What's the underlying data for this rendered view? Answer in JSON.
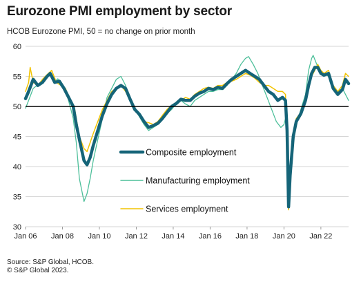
{
  "header": {
    "title": "Eurozone PMI employment by sector",
    "subtitle": "HCOB Eurozone PMI, 50 = no change on prior month"
  },
  "footer": {
    "source_line1": "Source: S&P Global, HCOB.",
    "source_line2": "© S&P Global 2023."
  },
  "chart_data": {
    "type": "line",
    "title": "Eurozone PMI employment by sector",
    "subtitle": "HCOB Eurozone PMI, 50 = no change on prior month",
    "xlabel": "",
    "ylabel": "",
    "x_range": [
      "2006-01",
      "2023-07"
    ],
    "ylim": [
      30,
      60
    ],
    "y_ticks": [
      30,
      35,
      40,
      45,
      50,
      55,
      60
    ],
    "x_ticks": [
      "Jan 06",
      "Jan 08",
      "Jan 10",
      "Jan 12",
      "Jan 14",
      "Jan 16",
      "Jan 18",
      "Jan 20",
      "Jan 22"
    ],
    "reference_line": 50,
    "grid": "horizontal",
    "legend_position": "center-right",
    "series": [
      {
        "name": "Manufacturing employment",
        "color": "#4dbf9a",
        "width": 1.3,
        "points": [
          [
            "2006-01",
            49.7
          ],
          [
            "2006-03",
            51.0
          ],
          [
            "2006-06",
            53.0
          ],
          [
            "2006-09",
            53.6
          ],
          [
            "2006-12",
            54.0
          ],
          [
            "2007-03",
            55.0
          ],
          [
            "2007-06",
            55.4
          ],
          [
            "2007-08",
            54.2
          ],
          [
            "2007-10",
            54.6
          ],
          [
            "2007-12",
            53.4
          ],
          [
            "2008-03",
            52.8
          ],
          [
            "2008-06",
            50.0
          ],
          [
            "2008-08",
            48.0
          ],
          [
            "2008-10",
            44.0
          ],
          [
            "2008-12",
            38.0
          ],
          [
            "2009-03",
            34.2
          ],
          [
            "2009-05",
            35.5
          ],
          [
            "2009-07",
            38.0
          ],
          [
            "2009-09",
            41.0
          ],
          [
            "2009-12",
            44.5
          ],
          [
            "2010-03",
            48.0
          ],
          [
            "2010-06",
            51.5
          ],
          [
            "2010-09",
            53.0
          ],
          [
            "2010-12",
            54.5
          ],
          [
            "2011-03",
            55.0
          ],
          [
            "2011-06",
            53.5
          ],
          [
            "2011-09",
            51.2
          ],
          [
            "2011-12",
            49.5
          ],
          [
            "2012-03",
            48.3
          ],
          [
            "2012-06",
            47.0
          ],
          [
            "2012-09",
            46.0
          ],
          [
            "2012-12",
            46.5
          ],
          [
            "2013-03",
            47.0
          ],
          [
            "2013-06",
            48.0
          ],
          [
            "2013-09",
            48.8
          ],
          [
            "2013-12",
            49.5
          ],
          [
            "2014-03",
            50.5
          ],
          [
            "2014-06",
            51.0
          ],
          [
            "2014-09",
            50.4
          ],
          [
            "2014-12",
            50.0
          ],
          [
            "2015-03",
            51.0
          ],
          [
            "2015-06",
            51.5
          ],
          [
            "2015-09",
            52.0
          ],
          [
            "2015-12",
            52.5
          ],
          [
            "2016-03",
            52.5
          ],
          [
            "2016-06",
            52.8
          ],
          [
            "2016-09",
            52.8
          ],
          [
            "2016-12",
            53.5
          ],
          [
            "2017-03",
            54.5
          ],
          [
            "2017-06",
            55.5
          ],
          [
            "2017-09",
            57.0
          ],
          [
            "2017-12",
            58.0
          ],
          [
            "2018-02",
            58.3
          ],
          [
            "2018-05",
            57.0
          ],
          [
            "2018-08",
            55.5
          ],
          [
            "2018-11",
            53.5
          ],
          [
            "2019-02",
            51.5
          ],
          [
            "2019-05",
            49.5
          ],
          [
            "2019-08",
            47.5
          ],
          [
            "2019-11",
            46.5
          ],
          [
            "2020-01",
            47.0
          ],
          [
            "2020-02",
            48.0
          ],
          [
            "2020-03",
            44.0
          ],
          [
            "2020-04",
            33.5
          ],
          [
            "2020-05",
            37.0
          ],
          [
            "2020-07",
            44.0
          ],
          [
            "2020-09",
            47.0
          ],
          [
            "2020-12",
            49.5
          ],
          [
            "2021-03",
            52.0
          ],
          [
            "2021-05",
            56.0
          ],
          [
            "2021-07",
            58.0
          ],
          [
            "2021-08",
            58.5
          ],
          [
            "2021-10",
            57.2
          ],
          [
            "2021-12",
            56.0
          ],
          [
            "2022-03",
            55.5
          ],
          [
            "2022-06",
            55.0
          ],
          [
            "2022-09",
            53.5
          ],
          [
            "2022-12",
            52.5
          ],
          [
            "2023-03",
            53.0
          ],
          [
            "2023-05",
            52.0
          ],
          [
            "2023-07",
            51.0
          ]
        ]
      },
      {
        "name": "Services employment",
        "color": "#f2c300",
        "width": 1.5,
        "points": [
          [
            "2006-01",
            52.5
          ],
          [
            "2006-03",
            54.0
          ],
          [
            "2006-04",
            56.5
          ],
          [
            "2006-06",
            54.0
          ],
          [
            "2006-09",
            53.5
          ],
          [
            "2006-12",
            54.5
          ],
          [
            "2007-03",
            55.3
          ],
          [
            "2007-06",
            56.0
          ],
          [
            "2007-09",
            54.0
          ],
          [
            "2007-12",
            53.5
          ],
          [
            "2008-03",
            53.0
          ],
          [
            "2008-06",
            51.0
          ],
          [
            "2008-09",
            49.5
          ],
          [
            "2008-12",
            45.0
          ],
          [
            "2009-03",
            43.0
          ],
          [
            "2009-05",
            42.5
          ],
          [
            "2009-07",
            44.0
          ],
          [
            "2009-09",
            45.5
          ],
          [
            "2009-12",
            47.5
          ],
          [
            "2010-03",
            49.5
          ],
          [
            "2010-06",
            51.0
          ],
          [
            "2010-09",
            52.5
          ],
          [
            "2010-12",
            53.0
          ],
          [
            "2011-03",
            53.5
          ],
          [
            "2011-06",
            52.5
          ],
          [
            "2011-09",
            51.0
          ],
          [
            "2011-12",
            49.5
          ],
          [
            "2012-03",
            48.5
          ],
          [
            "2012-06",
            47.5
          ],
          [
            "2012-09",
            47.3
          ],
          [
            "2012-12",
            47.0
          ],
          [
            "2013-03",
            47.5
          ],
          [
            "2013-06",
            48.5
          ],
          [
            "2013-09",
            49.5
          ],
          [
            "2013-12",
            50.2
          ],
          [
            "2014-03",
            50.5
          ],
          [
            "2014-06",
            51.0
          ],
          [
            "2014-09",
            51.5
          ],
          [
            "2014-12",
            51.2
          ],
          [
            "2015-03",
            52.0
          ],
          [
            "2015-06",
            52.5
          ],
          [
            "2015-09",
            53.0
          ],
          [
            "2015-12",
            53.2
          ],
          [
            "2016-03",
            53.0
          ],
          [
            "2016-06",
            53.5
          ],
          [
            "2016-09",
            53.5
          ],
          [
            "2016-12",
            54.0
          ],
          [
            "2017-03",
            54.2
          ],
          [
            "2017-06",
            54.5
          ],
          [
            "2017-09",
            55.0
          ],
          [
            "2017-12",
            55.5
          ],
          [
            "2018-03",
            55.2
          ],
          [
            "2018-06",
            54.7
          ],
          [
            "2018-09",
            54.0
          ],
          [
            "2018-12",
            53.5
          ],
          [
            "2019-03",
            53.5
          ],
          [
            "2019-06",
            53.0
          ],
          [
            "2019-09",
            52.5
          ],
          [
            "2019-12",
            52.5
          ],
          [
            "2020-02",
            52.0
          ],
          [
            "2020-03",
            45.0
          ],
          [
            "2020-04",
            32.8
          ],
          [
            "2020-05",
            39.0
          ],
          [
            "2020-07",
            45.5
          ],
          [
            "2020-09",
            48.0
          ],
          [
            "2020-12",
            49.0
          ],
          [
            "2021-03",
            50.5
          ],
          [
            "2021-05",
            53.0
          ],
          [
            "2021-07",
            55.0
          ],
          [
            "2021-09",
            56.0
          ],
          [
            "2021-11",
            57.0
          ],
          [
            "2022-01",
            56.0
          ],
          [
            "2022-03",
            55.5
          ],
          [
            "2022-06",
            56.0
          ],
          [
            "2022-09",
            53.5
          ],
          [
            "2022-12",
            52.5
          ],
          [
            "2023-03",
            53.5
          ],
          [
            "2023-05",
            55.5
          ],
          [
            "2023-07",
            55.0
          ]
        ]
      },
      {
        "name": "Composite employment",
        "color": "#156478",
        "width": 4.5,
        "points": [
          [
            "2006-01",
            51.3
          ],
          [
            "2006-03",
            52.5
          ],
          [
            "2006-06",
            54.5
          ],
          [
            "2006-09",
            53.5
          ],
          [
            "2006-12",
            54.0
          ],
          [
            "2007-03",
            55.0
          ],
          [
            "2007-05",
            55.5
          ],
          [
            "2007-08",
            54.0
          ],
          [
            "2007-11",
            54.2
          ],
          [
            "2008-02",
            53.0
          ],
          [
            "2008-05",
            51.5
          ],
          [
            "2008-08",
            50.0
          ],
          [
            "2008-10",
            47.0
          ],
          [
            "2008-12",
            44.5
          ],
          [
            "2009-03",
            41.0
          ],
          [
            "2009-05",
            40.3
          ],
          [
            "2009-07",
            41.5
          ],
          [
            "2009-09",
            43.5
          ],
          [
            "2009-12",
            46.0
          ],
          [
            "2010-03",
            48.5
          ],
          [
            "2010-06",
            50.5
          ],
          [
            "2010-09",
            52.0
          ],
          [
            "2010-12",
            53.0
          ],
          [
            "2011-03",
            53.5
          ],
          [
            "2011-06",
            53.0
          ],
          [
            "2011-09",
            51.2
          ],
          [
            "2011-12",
            49.5
          ],
          [
            "2012-03",
            48.7
          ],
          [
            "2012-06",
            47.5
          ],
          [
            "2012-09",
            46.5
          ],
          [
            "2012-12",
            46.8
          ],
          [
            "2013-03",
            47.2
          ],
          [
            "2013-06",
            48.0
          ],
          [
            "2013-09",
            49.0
          ],
          [
            "2013-12",
            50.0
          ],
          [
            "2014-03",
            50.5
          ],
          [
            "2014-06",
            51.2
          ],
          [
            "2014-09",
            51.0
          ],
          [
            "2014-12",
            51.0
          ],
          [
            "2015-03",
            51.7
          ],
          [
            "2015-06",
            52.2
          ],
          [
            "2015-09",
            52.5
          ],
          [
            "2015-12",
            53.0
          ],
          [
            "2016-03",
            52.8
          ],
          [
            "2016-06",
            53.2
          ],
          [
            "2016-09",
            53.0
          ],
          [
            "2016-12",
            53.8
          ],
          [
            "2017-03",
            54.5
          ],
          [
            "2017-06",
            55.0
          ],
          [
            "2017-09",
            55.5
          ],
          [
            "2017-12",
            56.0
          ],
          [
            "2018-03",
            55.5
          ],
          [
            "2018-06",
            55.0
          ],
          [
            "2018-09",
            54.5
          ],
          [
            "2018-12",
            53.5
          ],
          [
            "2019-03",
            52.5
          ],
          [
            "2019-06",
            52.0
          ],
          [
            "2019-09",
            51.0
          ],
          [
            "2019-12",
            51.5
          ],
          [
            "2020-02",
            51.0
          ],
          [
            "2020-03",
            46.0
          ],
          [
            "2020-04",
            33.3
          ],
          [
            "2020-05",
            38.5
          ],
          [
            "2020-07",
            45.0
          ],
          [
            "2020-09",
            47.5
          ],
          [
            "2020-12",
            48.8
          ],
          [
            "2021-03",
            51.0
          ],
          [
            "2021-05",
            53.5
          ],
          [
            "2021-07",
            55.5
          ],
          [
            "2021-09",
            56.5
          ],
          [
            "2021-11",
            56.5
          ],
          [
            "2022-01",
            55.5
          ],
          [
            "2022-03",
            55.2
          ],
          [
            "2022-06",
            55.5
          ],
          [
            "2022-09",
            53.0
          ],
          [
            "2022-12",
            52.0
          ],
          [
            "2023-03",
            52.8
          ],
          [
            "2023-05",
            54.5
          ],
          [
            "2023-07",
            53.8
          ]
        ]
      }
    ],
    "legend": [
      {
        "name": "Composite employment",
        "color": "#156478",
        "width": 4.5
      },
      {
        "name": "Manufacturing employment",
        "color": "#4dbf9a",
        "width": 1.5
      },
      {
        "name": "Services employment",
        "color": "#f2c300",
        "width": 1.5
      }
    ]
  }
}
